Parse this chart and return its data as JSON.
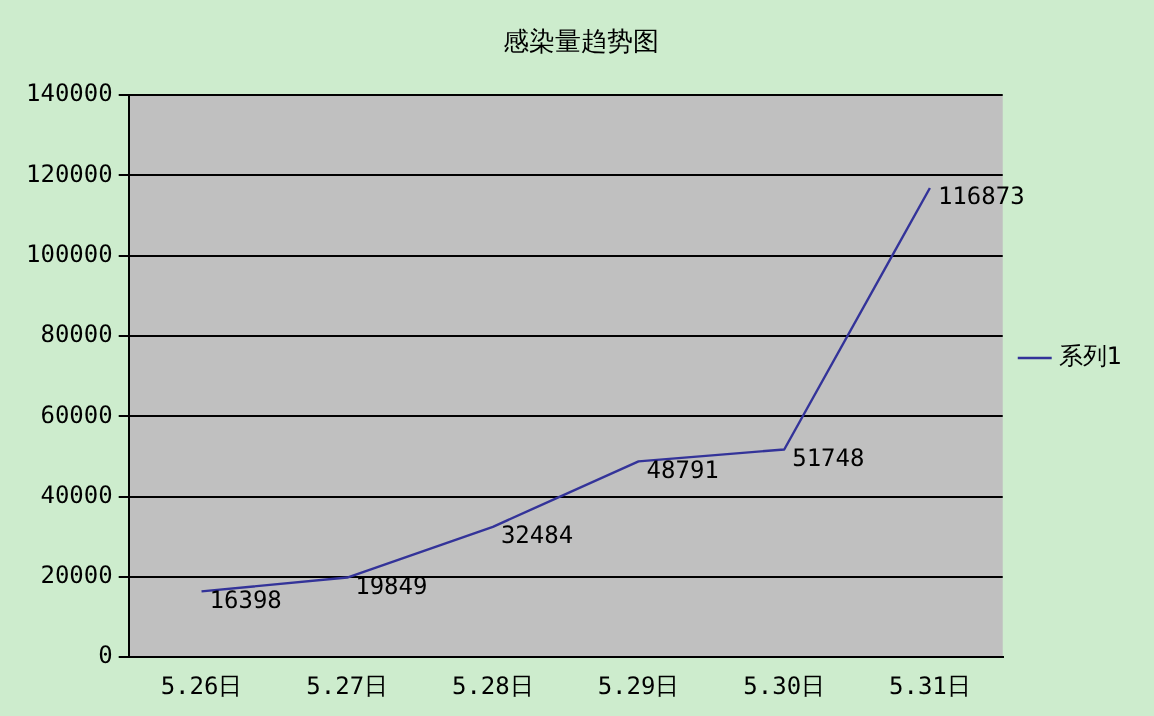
{
  "chart_data": {
    "type": "line",
    "title": "感染量趋势图",
    "categories": [
      "5.26日",
      "5.27日",
      "5.28日",
      "5.29日",
      "5.30日",
      "5.31日"
    ],
    "series": [
      {
        "name": "系列1",
        "color": "#333399",
        "values": [
          16398,
          19849,
          32484,
          48791,
          51748,
          116873
        ]
      }
    ],
    "ylim": [
      0,
      140000
    ],
    "yticks": [
      0,
      20000,
      40000,
      60000,
      80000,
      100000,
      120000,
      140000
    ],
    "grid": "y",
    "legend": "right",
    "data_labels": true,
    "marker": "none",
    "line_style": "solid"
  }
}
